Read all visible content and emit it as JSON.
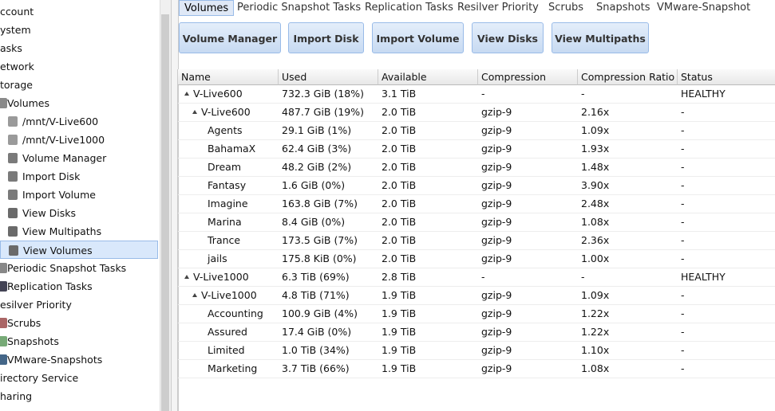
{
  "sidebar": {
    "items": [
      "ccount",
      "ystem",
      "asks",
      "etwork",
      "torage",
      "Volumes",
      "/mnt/V-Live600",
      "/mnt/V-Live1000",
      "Volume Manager",
      "Import Disk",
      "Import Volume",
      "View Disks",
      "View Multipaths",
      "View Volumes",
      "Periodic Snapshot Tasks",
      "Replication Tasks",
      "esilver Priority",
      "Scrubs",
      "Snapshots",
      "VMware-Snapshots",
      "irectory Service",
      "haring"
    ]
  },
  "tabs": [
    "Volumes",
    "Periodic Snapshot Tasks",
    "Replication Tasks",
    "Resilver Priority",
    "Scrubs",
    "Snapshots",
    "VMware-Snapshot"
  ],
  "buttons": [
    "Volume Manager",
    "Import Disk",
    "Import Volume",
    "View Disks",
    "View Multipaths"
  ],
  "table": {
    "columns": [
      "Name",
      "Used",
      "Available",
      "Compression",
      "Compression Ratio",
      "Status"
    ],
    "rows": [
      [
        "V-Live600",
        "732.3 GiB (18%)",
        "3.1 TiB",
        "-",
        "-",
        "HEALTHY"
      ],
      [
        "V-Live600",
        "487.7 GiB (19%)",
        "2.0 TiB",
        "gzip-9",
        "2.16x",
        "-"
      ],
      [
        "Agents",
        "29.1 GiB (1%)",
        "2.0 TiB",
        "gzip-9",
        "1.09x",
        "-"
      ],
      [
        "BahamaX",
        "62.4 GiB (3%)",
        "2.0 TiB",
        "gzip-9",
        "1.93x",
        "-"
      ],
      [
        "Dream",
        "48.2 GiB (2%)",
        "2.0 TiB",
        "gzip-9",
        "1.48x",
        "-"
      ],
      [
        "Fantasy",
        "1.6 GiB (0%)",
        "2.0 TiB",
        "gzip-9",
        "3.90x",
        "-"
      ],
      [
        "Imagine",
        "163.8 GiB (7%)",
        "2.0 TiB",
        "gzip-9",
        "2.48x",
        "-"
      ],
      [
        "Marina",
        "8.4 GiB (0%)",
        "2.0 TiB",
        "gzip-9",
        "1.08x",
        "-"
      ],
      [
        "Trance",
        "173.5 GiB (7%)",
        "2.0 TiB",
        "gzip-9",
        "2.36x",
        "-"
      ],
      [
        "jails",
        "175.8 KiB (0%)",
        "2.0 TiB",
        "gzip-9",
        "1.00x",
        "-"
      ],
      [
        "V-Live1000",
        "6.3 TiB (69%)",
        "2.8 TiB",
        "-",
        "-",
        "HEALTHY"
      ],
      [
        "V-Live1000",
        "4.8 TiB (71%)",
        "1.9 TiB",
        "gzip-9",
        "1.09x",
        "-"
      ],
      [
        "Accounting",
        "100.9 GiB (4%)",
        "1.9 TiB",
        "gzip-9",
        "1.22x",
        "-"
      ],
      [
        "Assured",
        "17.4 GiB (0%)",
        "1.9 TiB",
        "gzip-9",
        "1.22x",
        "-"
      ],
      [
        "Limited",
        "1.0 TiB (34%)",
        "1.9 TiB",
        "gzip-9",
        "1.10x",
        "-"
      ],
      [
        "Marketing",
        "3.7 TiB (66%)",
        "1.9 TiB",
        "gzip-9",
        "1.08x",
        "-"
      ]
    ]
  }
}
